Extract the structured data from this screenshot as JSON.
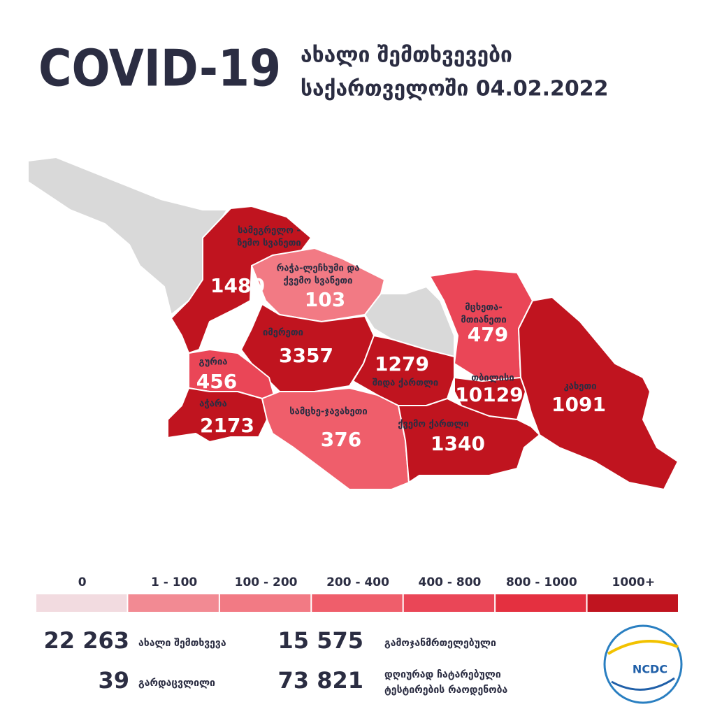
{
  "header": {
    "title": "COVID-19",
    "subtitle_line1": "ახალი შემთხვევები",
    "subtitle_line2": "საქართველოში 04.02.2022"
  },
  "map": {
    "regions": [
      {
        "name": "სამეგრელო -",
        "name2": "ზემო სვანეთი",
        "value": 1480,
        "color": "#c0141f"
      },
      {
        "name": "რაჭა-ლეჩხუმი და",
        "name2": "ქვემო სვანეთი",
        "value": 103,
        "color": "#f27a84"
      },
      {
        "name": "იმერეთი",
        "value": 3357,
        "color": "#c0141f"
      },
      {
        "name": "გურია",
        "value": 456,
        "color": "#ea4657"
      },
      {
        "name": "აჭარა",
        "value": 2173,
        "color": "#c0141f"
      },
      {
        "name": "სამცხე-ჯავახეთი",
        "value": 376,
        "color": "#ef5e6b"
      },
      {
        "name": "შიდა ქართლი",
        "value": 1279,
        "color": "#c0141f"
      },
      {
        "name": "მცხეთა-",
        "name2": "მთიანეთი",
        "value": 479,
        "color": "#ea4657"
      },
      {
        "name": "თბილისი",
        "value": 10129,
        "color": "#c0141f"
      },
      {
        "name": "ქვემო ქართლი",
        "value": 1340,
        "color": "#c0141f"
      },
      {
        "name": "კახეთი",
        "value": 1091,
        "color": "#c0141f"
      }
    ]
  },
  "legend": [
    {
      "label": "0",
      "color": "#f2dbe0"
    },
    {
      "label": "1 - 100",
      "color": "#f28a93"
    },
    {
      "label": "100 - 200",
      "color": "#f27a84"
    },
    {
      "label": "200 - 400",
      "color": "#ef5e6b"
    },
    {
      "label": "400 - 800",
      "color": "#ea4657"
    },
    {
      "label": "800 - 1000",
      "color": "#e43040"
    },
    {
      "label": "1000+",
      "color": "#c0141f"
    }
  ],
  "stats": [
    {
      "value": "22 263",
      "label": "ახალი შემთხვევა"
    },
    {
      "value": "15 575",
      "label": "გამოჯანმრთელებული"
    },
    {
      "value": "39",
      "label": "გარდაცვლილი"
    },
    {
      "value": "73 821",
      "label": "დღიურად ჩატარებული",
      "label2": "ტესტირების რაოდენობა"
    }
  ],
  "logo": {
    "text": "NCDC"
  }
}
